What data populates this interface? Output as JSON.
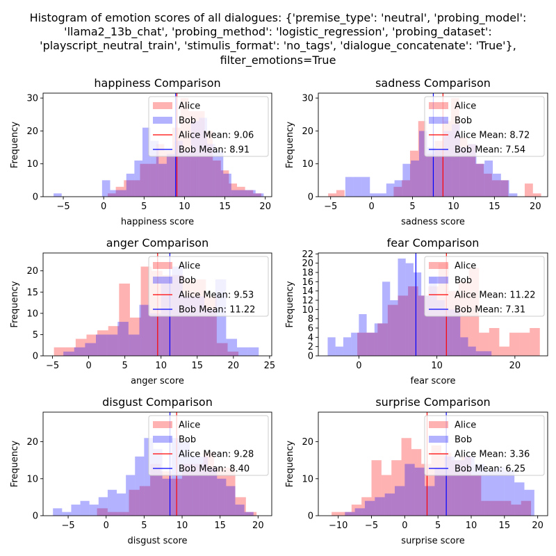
{
  "figure": {
    "suptitle_lines": [
      "Histogram of emotion scores of all dialogues: {'premise_type': 'neutral', 'probing_model':",
      "'llama2_13b_chat', 'probing_method': 'logistic_regression', 'probing_dataset':",
      "'playscript_neutral_train', 'stimulis_format': 'no_tags', 'dialogue_concatenate': 'True'},",
      "filter_emotions=True"
    ],
    "ylabel": "Frequency"
  },
  "colors": {
    "alice": "#ff0000",
    "bob": "#0000ff",
    "alice_fill": "rgba(255,0,0,0.3)",
    "bob_fill": "rgba(0,0,255,0.3)"
  },
  "chart_data": [
    {
      "type": "bar",
      "title": "happiness Comparison",
      "xlabel": "happiness score",
      "ylabel": "Frequency",
      "xlim": [
        -7.5,
        20.8
      ],
      "ylim": [
        0,
        31.5
      ],
      "xticks": [
        -5,
        0,
        5,
        10,
        15,
        20
      ],
      "yticks": [
        0,
        10,
        20,
        30
      ],
      "series": [
        {
          "name": "Alice",
          "edges": [
            0.5,
            1.5,
            2.5,
            3.5,
            4.5,
            5.5,
            6.5,
            7.5,
            8.5,
            9.5,
            10.5,
            11.5,
            12.5,
            13.5,
            14.5,
            15.5,
            16.5,
            17.5,
            18.5,
            19.5
          ],
          "counts": [
            1,
            3,
            5,
            5,
            10,
            10,
            16,
            14,
            21,
            30,
            26,
            26,
            20,
            11,
            8,
            4,
            3,
            2,
            1
          ]
        },
        {
          "name": "Bob",
          "edges": [
            -6.2,
            -5.2,
            -4.2,
            -3.2,
            -2.2,
            -1.2,
            -0.2,
            0.8,
            1.8,
            2.8,
            3.8,
            4.8,
            5.8,
            6.8,
            7.8,
            8.8,
            9.8,
            10.8,
            11.8,
            12.8,
            13.8,
            14.8,
            15.8,
            16.8,
            17.8,
            18.8,
            19.8
          ],
          "counts": [
            1,
            0,
            0,
            0,
            0,
            0,
            5,
            2,
            2,
            7,
            11,
            21,
            17,
            10,
            13,
            17,
            14,
            23,
            24,
            16,
            14,
            7,
            2,
            2,
            2,
            1
          ]
        }
      ],
      "legend": [
        "Alice",
        "Bob",
        "Alice Mean: 9.06",
        "Bob Mean: 8.91"
      ],
      "legend_position": "top-right",
      "means": {
        "alice": 9.06,
        "bob": 8.91
      }
    },
    {
      "type": "bar",
      "title": "sadness Comparison",
      "xlabel": "sadness score",
      "ylabel": "Frequency",
      "xlim": [
        -6.5,
        21.5
      ],
      "ylim": [
        0,
        31.5
      ],
      "xticks": [
        -5,
        0,
        5,
        10,
        15,
        20
      ],
      "yticks": [
        0,
        10,
        20,
        30
      ],
      "series": [
        {
          "name": "Alice",
          "edges": [
            -5.3,
            -4.3,
            -3.3,
            -2.3,
            -1.3,
            -0.3,
            0.7,
            1.7,
            2.7,
            3.7,
            4.7,
            5.7,
            6.7,
            7.7,
            8.7,
            9.7,
            10.7,
            11.7,
            12.7,
            13.7,
            14.7,
            15.7,
            16.7,
            17.7,
            18.7,
            19.7,
            20.7
          ],
          "counts": [
            1,
            2,
            0,
            0,
            0,
            0,
            0,
            0,
            3,
            5,
            14,
            23,
            13,
            17,
            23,
            30,
            18,
            16,
            10,
            7,
            5,
            5,
            0,
            0,
            4,
            1
          ]
        },
        {
          "name": "Bob",
          "edges": [
            -3.2,
            -2.2,
            -1.2,
            -0.2,
            0.8,
            1.8,
            2.8,
            3.8,
            4.8,
            5.8,
            6.8,
            7.8,
            8.8,
            9.8,
            10.8,
            11.8,
            12.8,
            13.8,
            14.8,
            15.8,
            16.8,
            17.8,
            18.8,
            19.8,
            20.8
          ],
          "counts": [
            6,
            6,
            6,
            1,
            1,
            4,
            5,
            10,
            11,
            20,
            15,
            14,
            20,
            22,
            15,
            16,
            10,
            11,
            7,
            5,
            1,
            0,
            0,
            0
          ]
        }
      ],
      "legend": [
        "Alice",
        "Bob",
        "Alice Mean: 8.72",
        "Bob Mean: 7.54"
      ],
      "legend_position": "top-right",
      "means": {
        "alice": 8.72,
        "bob": 7.54
      }
    },
    {
      "type": "bar",
      "title": "anger Comparison",
      "xlabel": "anger score",
      "ylabel": "Frequency",
      "xlim": [
        -6.3,
        25.3
      ],
      "ylim": [
        0,
        24.2
      ],
      "xticks": [
        -5,
        0,
        5,
        10,
        15,
        20,
        25
      ],
      "yticks": [
        0,
        5,
        10,
        15,
        20
      ],
      "series": [
        {
          "name": "Alice",
          "edges": [
            -4.8,
            -3.3,
            -1.8,
            -0.3,
            1.2,
            2.7,
            4.2,
            5.7,
            7.2,
            8.7,
            10.2,
            11.7,
            13.2,
            14.7,
            16.2,
            17.7,
            19.2,
            20.7
          ],
          "counts": [
            2,
            2,
            4,
            5,
            6,
            7,
            17,
            9,
            21,
            20,
            19,
            19,
            18,
            18,
            14,
            3,
            1
          ]
        },
        {
          "name": "Bob",
          "edges": [
            -3.5,
            -2.0,
            -0.5,
            1.0,
            2.5,
            4.0,
            5.5,
            7.0,
            8.5,
            10.0,
            11.5,
            13.0,
            14.5,
            16.0,
            17.5,
            19.0,
            20.5,
            22.0,
            23.5
          ],
          "counts": [
            1,
            2,
            3,
            5,
            5,
            8,
            5,
            12,
            10,
            17,
            21,
            14,
            14,
            11,
            18,
            4,
            2,
            2
          ]
        }
      ],
      "legend": [
        "Alice",
        "Bob",
        "Alice Mean: 9.53",
        "Bob Mean: 11.22"
      ],
      "legend_position": "top-right",
      "means": {
        "alice": 9.53,
        "bob": 11.22
      }
    },
    {
      "type": "bar",
      "title": "fear Comparison",
      "xlabel": "fear score",
      "ylabel": "Frequency",
      "xlim": [
        -5.2,
        24.2
      ],
      "ylim": [
        0,
        22.2
      ],
      "xticks": [
        0,
        10,
        20
      ],
      "yticks": [
        0,
        2,
        4,
        6,
        8,
        10,
        12,
        14,
        16,
        18,
        20,
        22
      ],
      "series": [
        {
          "name": "Alice",
          "edges": [
            -0.2,
            1.1,
            2.4,
            3.7,
            5.0,
            6.3,
            7.6,
            8.9,
            10.2,
            11.5,
            12.8,
            14.1,
            15.4,
            16.7,
            18.0,
            19.3,
            20.6,
            21.9,
            23.2
          ],
          "counts": [
            5,
            5,
            7,
            11,
            13,
            15,
            13,
            15,
            20,
            14,
            16,
            19,
            5,
            6,
            2,
            5,
            5,
            6
          ]
        },
        {
          "name": "Bob",
          "edges": [
            -4.0,
            -3.0,
            -2.0,
            -1.0,
            0.0,
            1.0,
            2.0,
            3.0,
            4.0,
            5.0,
            6.0,
            7.0,
            8.0,
            9.0,
            10.0,
            11.0,
            12.0,
            13.0,
            14.0,
            15.0,
            16.0,
            17.0
          ],
          "counts": [
            4,
            2,
            4,
            5,
            9,
            5,
            7,
            16,
            12,
            21,
            20,
            18,
            13,
            17,
            12,
            10,
            10,
            4,
            2,
            1,
            1
          ]
        }
      ],
      "legend": [
        "Alice",
        "Bob",
        "Alice Mean: 11.22",
        "Bob Mean: 7.31"
      ],
      "legend_position": "top-right",
      "means": {
        "alice": 11.22,
        "bob": 7.31
      }
    },
    {
      "type": "bar",
      "title": "disgust Comparison",
      "xlabel": "disgust score",
      "ylabel": "Frequency",
      "xlim": [
        -8.3,
        21.8
      ],
      "ylim": [
        0,
        28.0
      ],
      "xticks": [
        -5,
        0,
        5,
        10,
        15,
        20
      ],
      "yticks": [
        0,
        10,
        20
      ],
      "series": [
        {
          "name": "Alice",
          "edges": [
            -1.2,
            0.2,
            1.6,
            3.0,
            4.4,
            5.8,
            7.2,
            8.6,
            10.0,
            11.4,
            12.8,
            14.2,
            15.6,
            17.0,
            18.4,
            19.8
          ],
          "counts": [
            2,
            1,
            1,
            7,
            8,
            14,
            12,
            10,
            14,
            14,
            17,
            13,
            13,
            5,
            1
          ]
        },
        {
          "name": "Bob",
          "edges": [
            -7.0,
            -5.8,
            -4.6,
            -3.4,
            -2.2,
            -1.0,
            0.2,
            1.4,
            2.6,
            3.8,
            5.0,
            6.2,
            7.4,
            8.6,
            9.8,
            11.0,
            12.2,
            13.4,
            14.6,
            15.8,
            17.0,
            18.2,
            19.4
          ],
          "counts": [
            2,
            1,
            3,
            4,
            3,
            5,
            7,
            6,
            11,
            16,
            21,
            18,
            10,
            21,
            20,
            16,
            16,
            13,
            10,
            8,
            3,
            1
          ]
        }
      ],
      "legend": [
        "Alice",
        "Bob",
        "Alice Mean: 9.28",
        "Bob Mean: 8.40"
      ],
      "legend_position": "top-right",
      "means": {
        "alice": 9.28,
        "bob": 8.4
      }
    },
    {
      "type": "bar",
      "title": "surprise Comparison",
      "xlabel": "surprise score",
      "ylabel": "Frequency",
      "xlim": [
        -13.0,
        21.5
      ],
      "ylim": [
        0,
        28.0
      ],
      "xticks": [
        -10,
        -5,
        0,
        5,
        10,
        15,
        20
      ],
      "yticks": [
        0,
        10,
        20
      ],
      "series": [
        {
          "name": "Alice",
          "edges": [
            -11.0,
            -9.5,
            -8.0,
            -6.5,
            -5.0,
            -3.5,
            -2.0,
            -0.5,
            1.0,
            2.5,
            4.0,
            5.5,
            7.0,
            8.5,
            10.0,
            11.5,
            13.0,
            14.5,
            16.0,
            17.5,
            19.0
          ],
          "counts": [
            1,
            1,
            3,
            5,
            15,
            11,
            15,
            21,
            18,
            14,
            19,
            17,
            15,
            16,
            11,
            4,
            4,
            4,
            3,
            4
          ]
        },
        {
          "name": "Bob",
          "edges": [
            -9.0,
            -7.5,
            -6.0,
            -4.5,
            -3.0,
            -1.5,
            0.0,
            1.5,
            3.0,
            4.5,
            6.0,
            7.5,
            9.0,
            10.5,
            12.0,
            13.5,
            15.0,
            16.5,
            18.0,
            19.5
          ],
          "counts": [
            1,
            2,
            4,
            5,
            6,
            8,
            14,
            13,
            8,
            13,
            16,
            15,
            16,
            14,
            12,
            13,
            12,
            9,
            7
          ]
        }
      ],
      "legend": [
        "Alice",
        "Bob",
        "Alice Mean: 3.36",
        "Bob Mean: 6.25"
      ],
      "legend_position": "top-right",
      "means": {
        "alice": 3.36,
        "bob": 6.25
      }
    }
  ]
}
